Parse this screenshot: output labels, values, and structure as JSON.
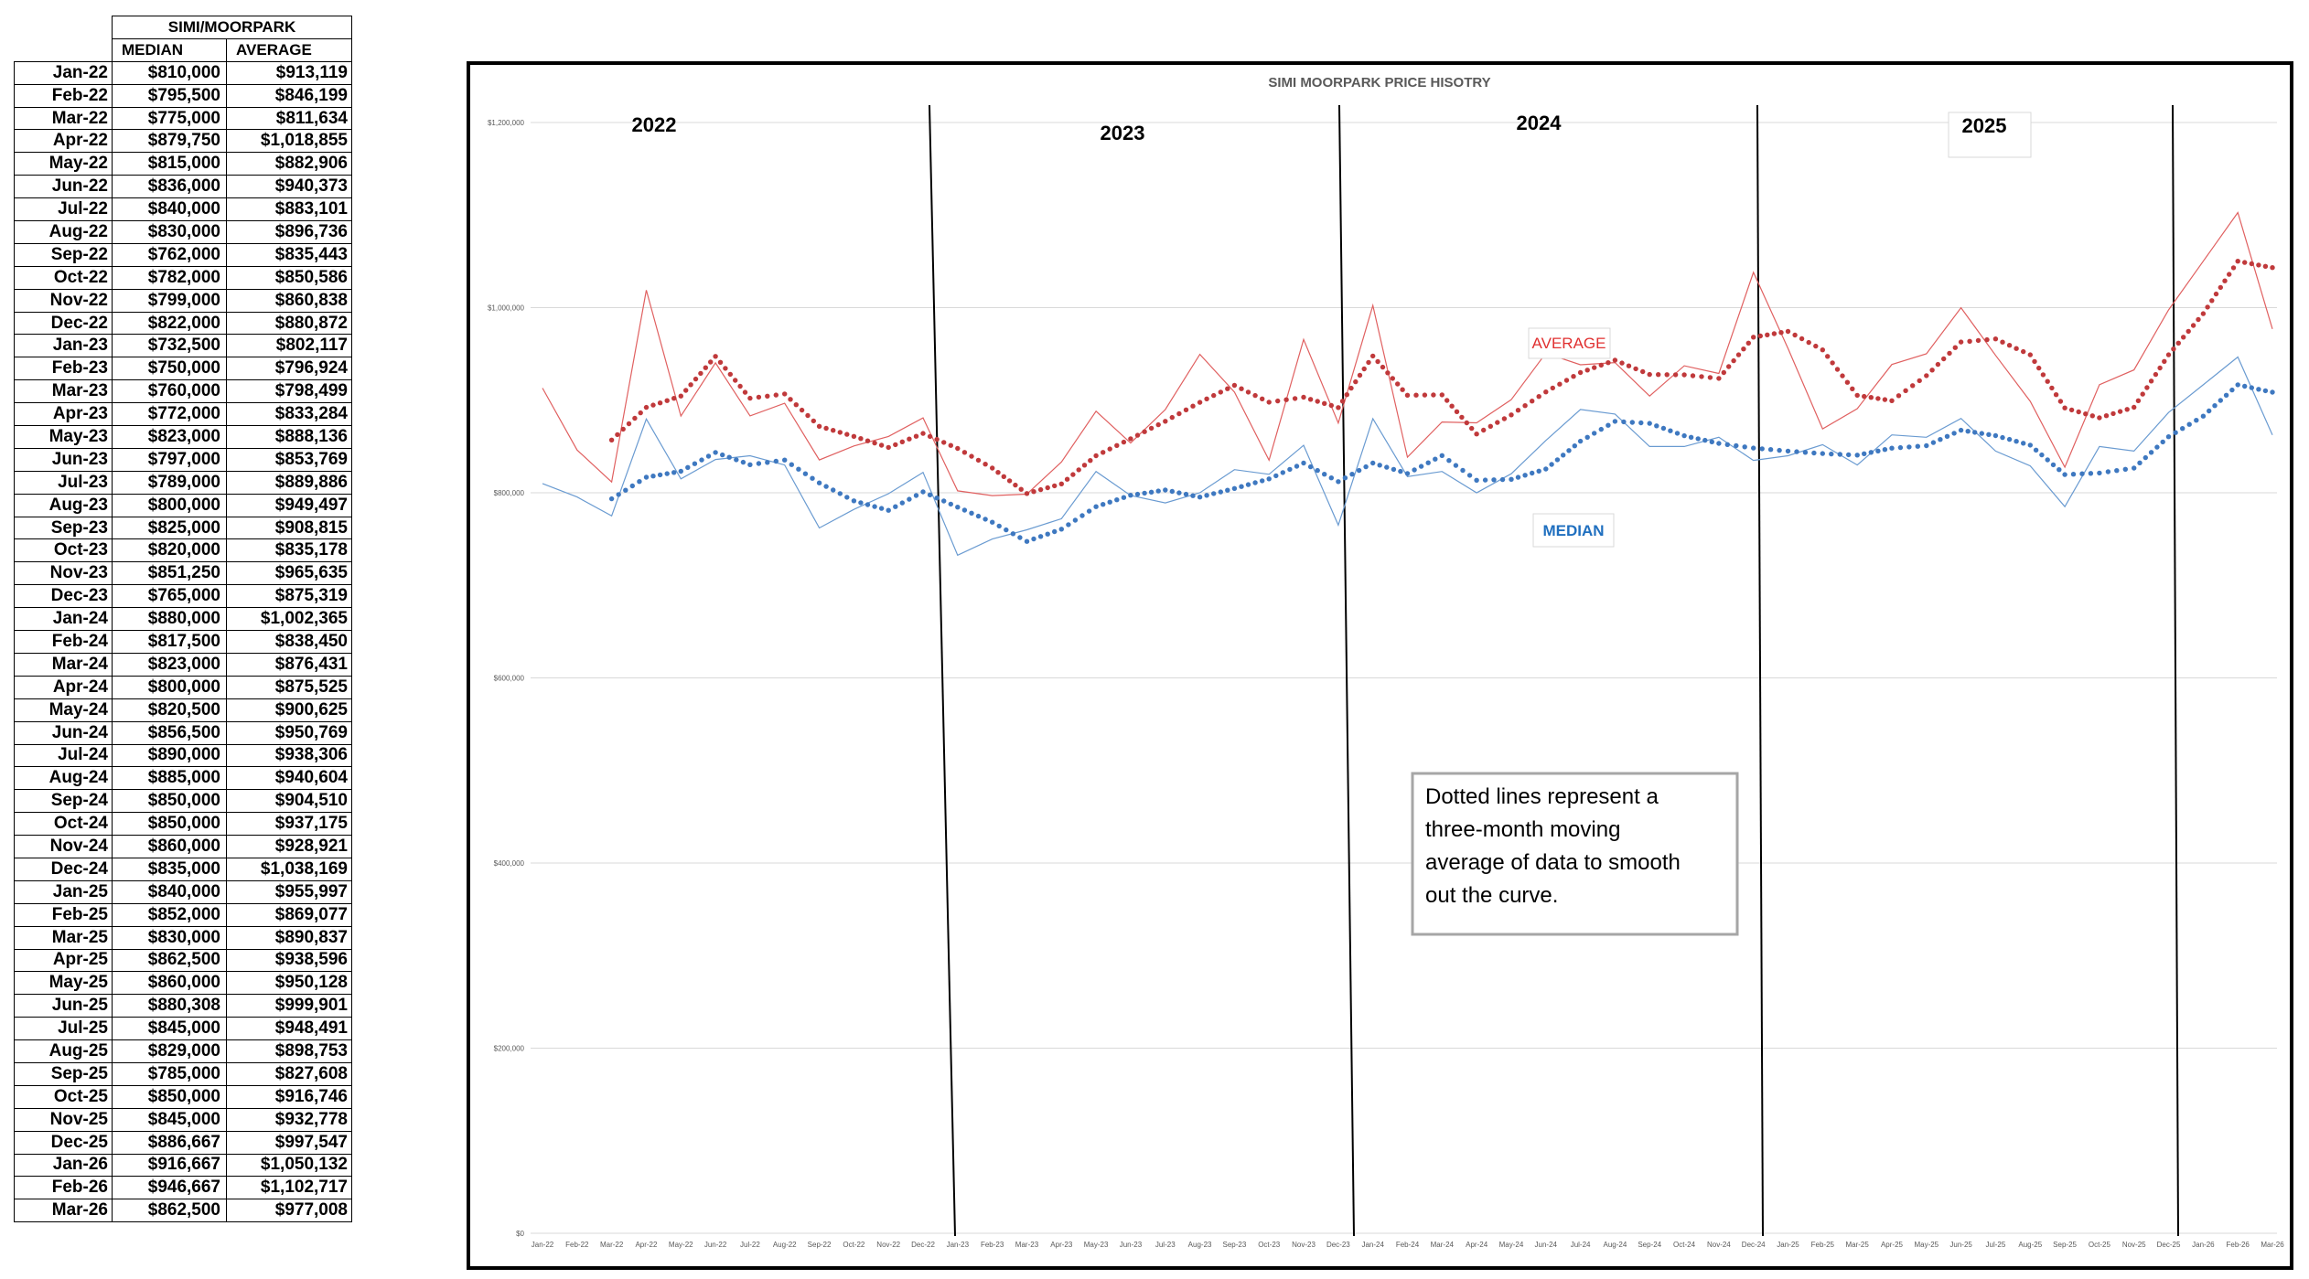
{
  "table": {
    "title": "SIMI/MOORPARK",
    "headers": {
      "median": "MEDIAN",
      "average": "AVERAGE"
    },
    "rows": [
      {
        "month": "Jan-22",
        "median": "$810,000",
        "average": "$913,119"
      },
      {
        "month": "Feb-22",
        "median": "$795,500",
        "average": "$846,199"
      },
      {
        "month": "Mar-22",
        "median": "$775,000",
        "average": "$811,634"
      },
      {
        "month": "Apr-22",
        "median": "$879,750",
        "average": "$1,018,855"
      },
      {
        "month": "May-22",
        "median": "$815,000",
        "average": "$882,906"
      },
      {
        "month": "Jun-22",
        "median": "$836,000",
        "average": "$940,373"
      },
      {
        "month": "Jul-22",
        "median": "$840,000",
        "average": "$883,101"
      },
      {
        "month": "Aug-22",
        "median": "$830,000",
        "average": "$896,736"
      },
      {
        "month": "Sep-22",
        "median": "$762,000",
        "average": "$835,443"
      },
      {
        "month": "Oct-22",
        "median": "$782,000",
        "average": "$850,586"
      },
      {
        "month": "Nov-22",
        "median": "$799,000",
        "average": "$860,838"
      },
      {
        "month": "Dec-22",
        "median": "$822,000",
        "average": "$880,872"
      },
      {
        "month": "Jan-23",
        "median": "$732,500",
        "average": "$802,117"
      },
      {
        "month": "Feb-23",
        "median": "$750,000",
        "average": "$796,924"
      },
      {
        "month": "Mar-23",
        "median": "$760,000",
        "average": "$798,499"
      },
      {
        "month": "Apr-23",
        "median": "$772,000",
        "average": "$833,284"
      },
      {
        "month": "May-23",
        "median": "$823,000",
        "average": "$888,136"
      },
      {
        "month": "Jun-23",
        "median": "$797,000",
        "average": "$853,769"
      },
      {
        "month": "Jul-23",
        "median": "$789,000",
        "average": "$889,886"
      },
      {
        "month": "Aug-23",
        "median": "$800,000",
        "average": "$949,497"
      },
      {
        "month": "Sep-23",
        "median": "$825,000",
        "average": "$908,815"
      },
      {
        "month": "Oct-23",
        "median": "$820,000",
        "average": "$835,178"
      },
      {
        "month": "Nov-23",
        "median": "$851,250",
        "average": "$965,635"
      },
      {
        "month": "Dec-23",
        "median": "$765,000",
        "average": "$875,319"
      },
      {
        "month": "Jan-24",
        "median": "$880,000",
        "average": "$1,002,365"
      },
      {
        "month": "Feb-24",
        "median": "$817,500",
        "average": "$838,450"
      },
      {
        "month": "Mar-24",
        "median": "$823,000",
        "average": "$876,431"
      },
      {
        "month": "Apr-24",
        "median": "$800,000",
        "average": "$875,525"
      },
      {
        "month": "May-24",
        "median": "$820,500",
        "average": "$900,625"
      },
      {
        "month": "Jun-24",
        "median": "$856,500",
        "average": "$950,769"
      },
      {
        "month": "Jul-24",
        "median": "$890,000",
        "average": "$938,306"
      },
      {
        "month": "Aug-24",
        "median": "$885,000",
        "average": "$940,604"
      },
      {
        "month": "Sep-24",
        "median": "$850,000",
        "average": "$904,510"
      },
      {
        "month": "Oct-24",
        "median": "$850,000",
        "average": "$937,175"
      },
      {
        "month": "Nov-24",
        "median": "$860,000",
        "average": "$928,921"
      },
      {
        "month": "Dec-24",
        "median": "$835,000",
        "average": "$1,038,169"
      },
      {
        "month": "Jan-25",
        "median": "$840,000",
        "average": "$955,997"
      },
      {
        "month": "Feb-25",
        "median": "$852,000",
        "average": "$869,077"
      },
      {
        "month": "Mar-25",
        "median": "$830,000",
        "average": "$890,837"
      },
      {
        "month": "Apr-25",
        "median": "$862,500",
        "average": "$938,596"
      },
      {
        "month": "May-25",
        "median": "$860,000",
        "average": "$950,128"
      },
      {
        "month": "Jun-25",
        "median": "$880,308",
        "average": "$999,901"
      },
      {
        "month": "Jul-25",
        "median": "$845,000",
        "average": "$948,491"
      },
      {
        "month": "Aug-25",
        "median": "$829,000",
        "average": "$898,753"
      },
      {
        "month": "Sep-25",
        "median": "$785,000",
        "average": "$827,608"
      },
      {
        "month": "Oct-25",
        "median": "$850,000",
        "average": "$916,746"
      },
      {
        "month": "Nov-25",
        "median": "$845,000",
        "average": "$932,778"
      },
      {
        "month": "Dec-25",
        "median": "$886,667",
        "average": "$997,547"
      },
      {
        "month": "Jan-26",
        "median": "$916,667",
        "average": "$1,050,132"
      },
      {
        "month": "Feb-26",
        "median": "$946,667",
        "average": "$1,102,717"
      },
      {
        "month": "Mar-26",
        "median": "$862,500",
        "average": "$977,008"
      }
    ]
  },
  "chart_data": {
    "type": "line",
    "title": "SIMI MOORPARK PRICE HISOTRY",
    "xlabel": "",
    "ylabel": "",
    "ylim": [
      0,
      1200000
    ],
    "yticks": [
      0,
      200000,
      400000,
      600000,
      800000,
      1000000,
      1200000
    ],
    "ytick_labels": [
      "$0",
      "$200,000",
      "$400,000",
      "$600,000",
      "$800,000",
      "$1,000,000",
      "$1,200,000"
    ],
    "grid": true,
    "categories": [
      "Jan-22",
      "Feb-22",
      "Mar-22",
      "Apr-22",
      "May-22",
      "Jun-22",
      "Jul-22",
      "Aug-22",
      "Sep-22",
      "Oct-22",
      "Nov-22",
      "Dec-22",
      "Jan-23",
      "Feb-23",
      "Mar-23",
      "Apr-23",
      "May-23",
      "Jun-23",
      "Jul-23",
      "Aug-23",
      "Sep-23",
      "Oct-23",
      "Nov-23",
      "Dec-23",
      "Jan-24",
      "Feb-24",
      "Mar-24",
      "Apr-24",
      "May-24",
      "Jun-24",
      "Jul-24",
      "Aug-24",
      "Sep-24",
      "Oct-24",
      "Nov-24",
      "Dec-24",
      "Jan-25",
      "Feb-25",
      "Mar-25",
      "Apr-25",
      "May-25",
      "Jun-25",
      "Jul-25",
      "Aug-25",
      "Sep-25",
      "Oct-25",
      "Nov-25",
      "Dec-25",
      "Jan-26",
      "Feb-26",
      "Mar-26"
    ],
    "series": [
      {
        "name": "AVERAGE",
        "color": "#e06060",
        "values": [
          913119,
          846199,
          811634,
          1018855,
          882906,
          940373,
          883101,
          896736,
          835443,
          850586,
          860838,
          880872,
          802117,
          796924,
          798499,
          833284,
          888136,
          853769,
          889886,
          949497,
          908815,
          835178,
          965635,
          875319,
          1002365,
          838450,
          876431,
          875525,
          900625,
          950769,
          938306,
          940604,
          904510,
          937175,
          928921,
          1038169,
          955997,
          869077,
          890837,
          938596,
          950128,
          999901,
          948491,
          898753,
          827608,
          916746,
          932778,
          997547,
          1050132,
          1102717,
          977008
        ]
      },
      {
        "name": "MEDIAN",
        "color": "#6a9bd1",
        "values": [
          810000,
          795500,
          775000,
          879750,
          815000,
          836000,
          840000,
          830000,
          762000,
          782000,
          799000,
          822000,
          732500,
          750000,
          760000,
          772000,
          823000,
          797000,
          789000,
          800000,
          825000,
          820000,
          851250,
          765000,
          880000,
          817500,
          823000,
          800000,
          820500,
          856500,
          890000,
          885000,
          850000,
          850000,
          860000,
          835000,
          840000,
          852000,
          830000,
          862500,
          860000,
          880308,
          845000,
          829000,
          785000,
          850000,
          845000,
          886667,
          916667,
          946667,
          862500
        ]
      }
    ],
    "moving_average": {
      "window": 3,
      "avg_color": "#c0393b",
      "median_color": "#3e78c0"
    },
    "year_labels": [
      "2022",
      "2023",
      "2024",
      "2025"
    ],
    "series_labels": {
      "average": "AVERAGE",
      "median": "MEDIAN"
    },
    "note": "Dotted lines represent a three-month moving average of data to smooth out the curve."
  }
}
